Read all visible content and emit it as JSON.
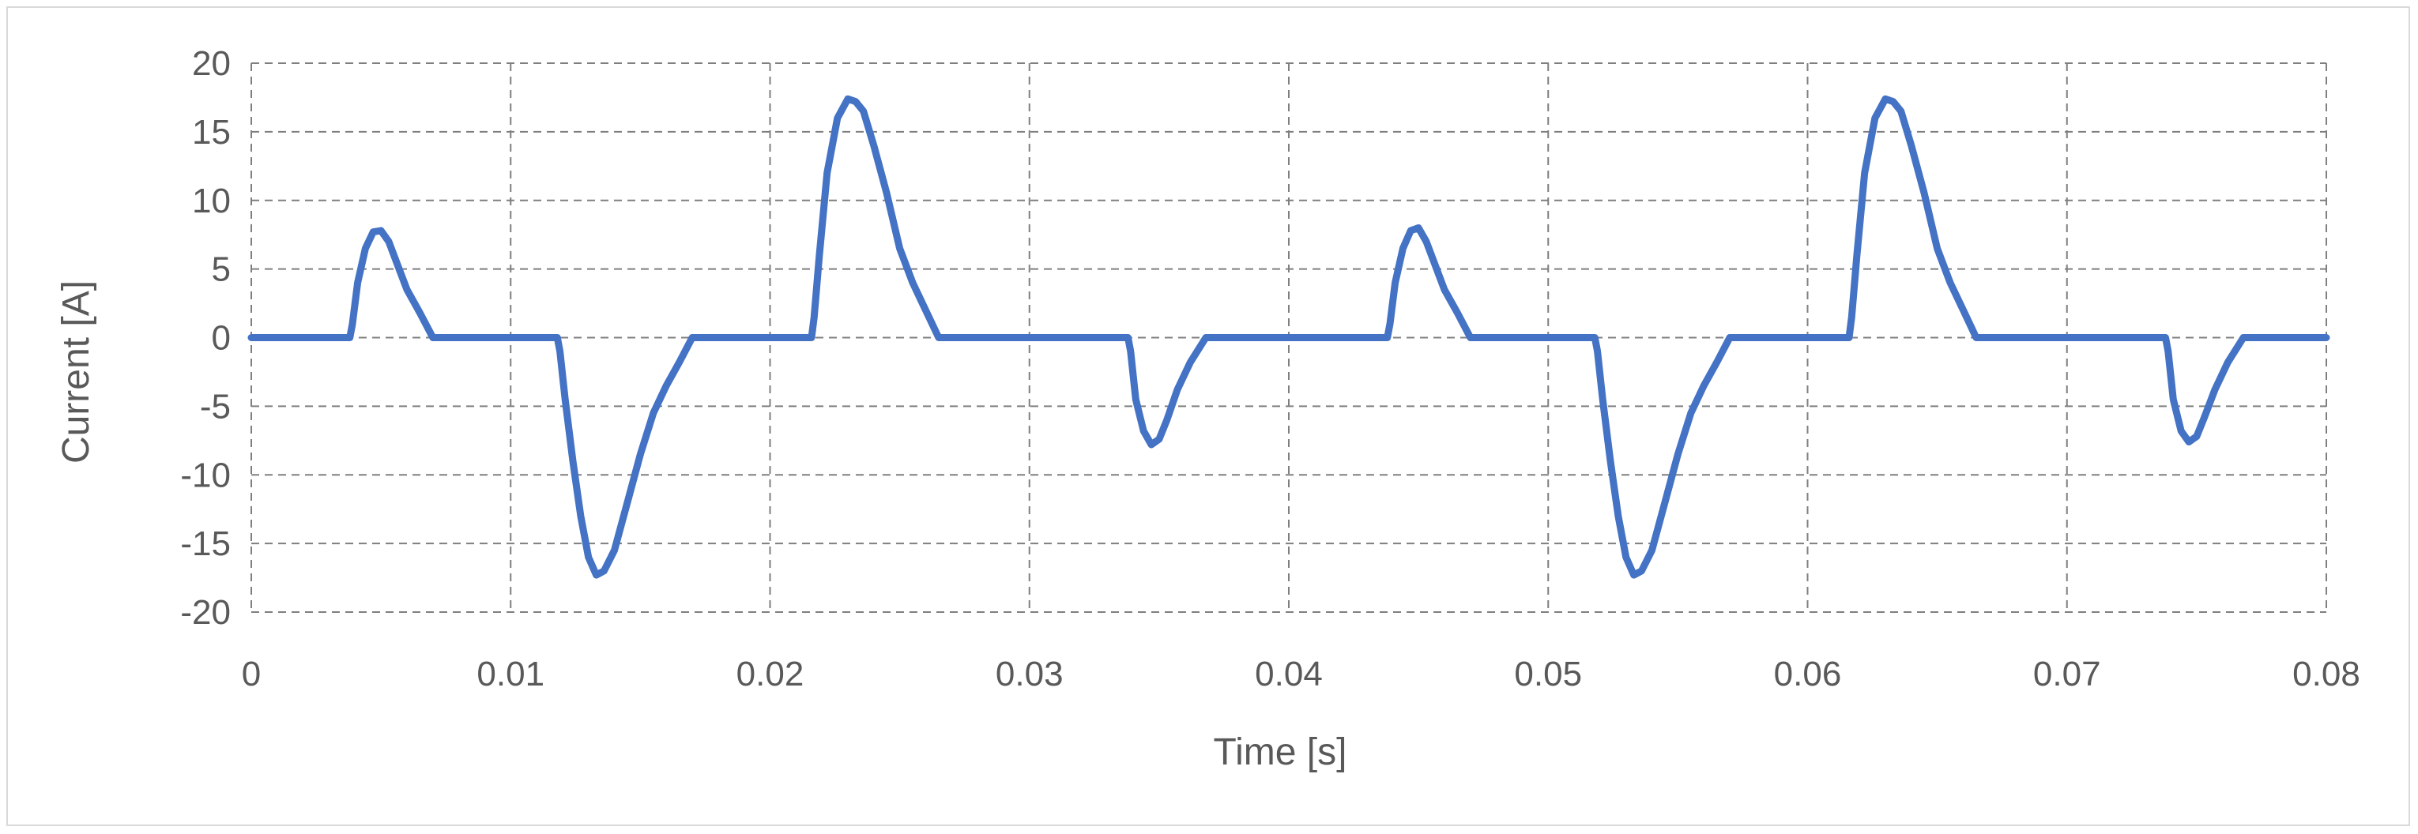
{
  "chart_data": {
    "type": "line",
    "title": "",
    "xlabel": "Time [s]",
    "ylabel": "Current [A]",
    "xlim": [
      0,
      0.08
    ],
    "ylim": [
      -20,
      20
    ],
    "x_ticks": [
      0,
      0.01,
      0.02,
      0.03,
      0.04,
      0.05,
      0.06,
      0.07,
      0.08
    ],
    "x_tick_labels": [
      "0",
      "0.01",
      "0.02",
      "0.03",
      "0.04",
      "0.05",
      "0.06",
      "0.07",
      "0.08"
    ],
    "y_ticks": [
      20,
      15,
      10,
      5,
      0,
      -5,
      -10,
      -15,
      -20
    ],
    "y_tick_labels": [
      "20",
      "15",
      "10",
      "5",
      "0",
      "-5",
      "-10",
      "-15",
      "-20"
    ],
    "grid": true,
    "legend": "none",
    "color": "#4472C4",
    "series": [
      {
        "x": [
          0,
          0.0038,
          0.0039,
          0.0041,
          0.0044,
          0.0047,
          0.005,
          0.0053,
          0.0056,
          0.006,
          0.0065,
          0.007,
          0.0075,
          0.0118,
          0.0119,
          0.0121,
          0.0124,
          0.0127,
          0.013,
          0.0133,
          0.0136,
          0.014,
          0.0145,
          0.015,
          0.0155,
          0.016,
          0.0165,
          0.017,
          0.0175,
          0.0216,
          0.0217,
          0.0219,
          0.0222,
          0.0226,
          0.023,
          0.0233,
          0.0236,
          0.024,
          0.0245,
          0.025,
          0.0255,
          0.026,
          0.0265,
          0.027,
          0.0275,
          0.0338,
          0.0339,
          0.0341,
          0.0344,
          0.0347,
          0.035,
          0.0353,
          0.0357,
          0.0362,
          0.0368,
          0.0374,
          0.0438,
          0.0439,
          0.0441,
          0.0444,
          0.0447,
          0.045,
          0.0453,
          0.0456,
          0.046,
          0.0465,
          0.047,
          0.0475,
          0.0518,
          0.0519,
          0.0521,
          0.0524,
          0.0527,
          0.053,
          0.0533,
          0.0536,
          0.054,
          0.0545,
          0.055,
          0.0555,
          0.056,
          0.0565,
          0.057,
          0.0575,
          0.0616,
          0.0617,
          0.0619,
          0.0622,
          0.0626,
          0.063,
          0.0633,
          0.0636,
          0.064,
          0.0645,
          0.065,
          0.0655,
          0.066,
          0.0665,
          0.067,
          0.0675,
          0.0738,
          0.0739,
          0.0741,
          0.0744,
          0.0747,
          0.075,
          0.0753,
          0.0757,
          0.0762,
          0.0768,
          0.0774,
          0.08
        ],
        "y": [
          0,
          0,
          1.0,
          4.0,
          6.5,
          7.7,
          7.8,
          7.0,
          5.5,
          3.5,
          1.8,
          0,
          0,
          0,
          -1.0,
          -4.5,
          -9.0,
          -13.0,
          -16.0,
          -17.3,
          -17.0,
          -15.5,
          -12.0,
          -8.5,
          -5.5,
          -3.5,
          -1.8,
          0,
          0,
          0,
          1.5,
          6.0,
          12.0,
          16.0,
          17.4,
          17.2,
          16.5,
          14.0,
          10.5,
          6.5,
          4.0,
          2.0,
          0,
          0,
          0,
          0,
          -1.0,
          -4.5,
          -6.8,
          -7.8,
          -7.4,
          -6.0,
          -3.8,
          -1.8,
          0,
          0,
          0,
          1.0,
          4.0,
          6.5,
          7.8,
          8.0,
          7.0,
          5.5,
          3.5,
          1.8,
          0,
          0,
          0,
          -1.0,
          -4.5,
          -9.0,
          -13.0,
          -16.0,
          -17.3,
          -17.0,
          -15.5,
          -12.0,
          -8.5,
          -5.5,
          -3.5,
          -1.8,
          0,
          0,
          0,
          1.5,
          6.0,
          12.0,
          16.0,
          17.4,
          17.2,
          16.5,
          14.0,
          10.5,
          6.5,
          4.0,
          2.0,
          0,
          0,
          0,
          0,
          -1.0,
          -4.5,
          -6.8,
          -7.6,
          -7.2,
          -5.8,
          -3.8,
          -1.8,
          0,
          0,
          0
        ]
      }
    ]
  }
}
